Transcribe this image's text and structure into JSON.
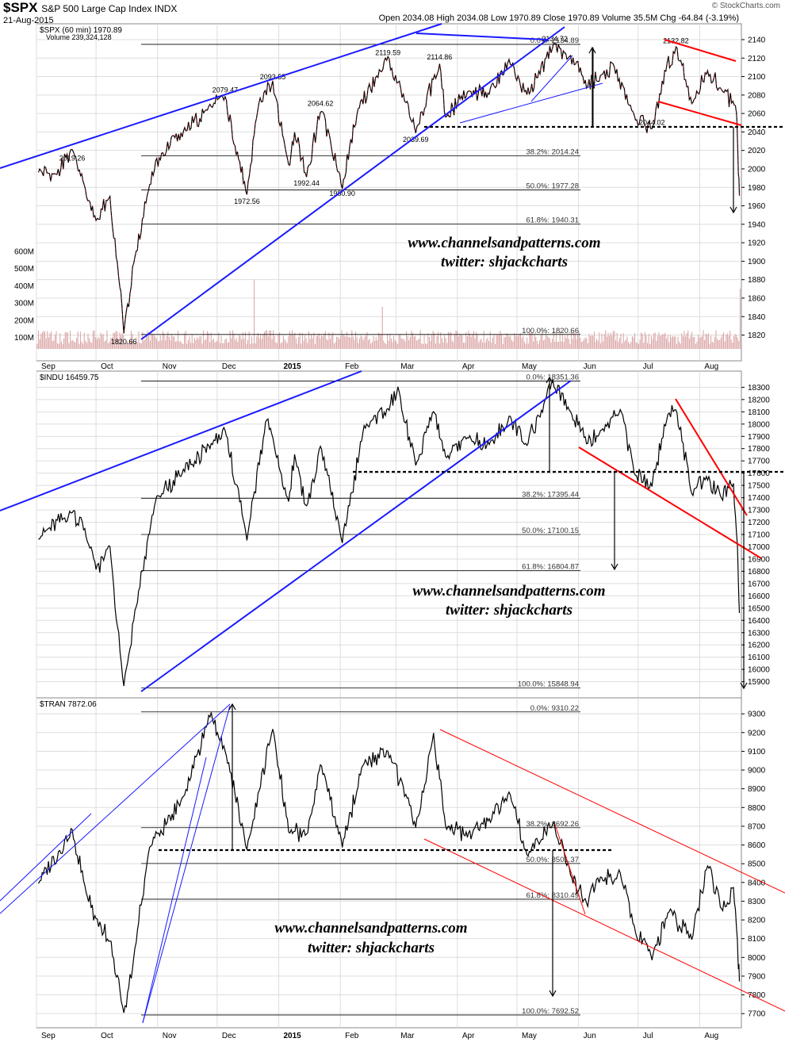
{
  "header": {
    "symbol": "$SPX",
    "name": "S&P 500 Large Cap Index INDX",
    "date": "21-Aug-2015",
    "ohlc": "Open 2034.08 High 2034.08 Low 1970.89 Close 1970.89 Volume 35.5M Chg -64.84 (-3.19%)",
    "brand": "© StockCharts.com"
  },
  "colors": {
    "trendline": "#1a1aff",
    "resistance": "#ff0000",
    "price_up": "#000000",
    "price_down": "#cc0000",
    "volume": "#d9a0a0",
    "grid": "#dddddd"
  },
  "watermark": {
    "line1": "www.channelsandpatterns.com",
    "line2": "twitter: shjackcharts"
  },
  "chart_data": [
    {
      "type": "line",
      "legend": "$SPX (60 min) 1970.89",
      "volume_label": "Volume 239,324,128",
      "y_ticks": [
        1820,
        1840,
        1860,
        1880,
        1900,
        1920,
        1940,
        1960,
        1980,
        2000,
        2020,
        2040,
        2060,
        2080,
        2100,
        2120,
        2140
      ],
      "ylim": [
        1805,
        2152
      ],
      "volume_ticks": [
        "100M",
        "200M",
        "300M",
        "400M",
        "500M",
        "600M"
      ],
      "fib_levels": [
        {
          "label": "0.0%: 2134.89",
          "value": 2134.89
        },
        {
          "label": "38.2%: 2014.24",
          "value": 2014.24
        },
        {
          "label": "50.0%: 1977.28",
          "value": 1977.28
        },
        {
          "label": "61.8%: 1940.31",
          "value": 1940.31
        },
        {
          "label": "100.0%: 1820.66",
          "value": 1820.66
        }
      ],
      "annotations": [
        {
          "text": "2019.26",
          "date": "2014-09-19",
          "value": 2019.26
        },
        {
          "text": "1820.66",
          "date": "2014-10-15",
          "value": 1820.66
        },
        {
          "text": "2079.47",
          "date": "2014-12-05",
          "value": 2079.47
        },
        {
          "text": "1972.56",
          "date": "2014-12-16",
          "value": 1972.56
        },
        {
          "text": "2093.55",
          "date": "2014-12-29",
          "value": 2093.55
        },
        {
          "text": "1992.44",
          "date": "2015-01-15",
          "value": 1992.44
        },
        {
          "text": "2064.62",
          "date": "2015-01-22",
          "value": 2064.62
        },
        {
          "text": "1980.90",
          "date": "2015-02-02",
          "value": 1980.9
        },
        {
          "text": "2119.59",
          "date": "2015-02-25",
          "value": 2119.59
        },
        {
          "text": "2039.69",
          "date": "2015-03-11",
          "value": 2039.69
        },
        {
          "text": "2114.86",
          "date": "2015-03-23",
          "value": 2114.86
        },
        {
          "text": "2134.72",
          "date": "2015-05-20",
          "value": 2134.72
        },
        {
          "text": "2044.02",
          "date": "2015-07-08",
          "value": 2044.02
        },
        {
          "text": "2132.82",
          "date": "2015-07-20",
          "value": 2132.82
        }
      ],
      "series": [
        {
          "values": [
            [
              "2014-09-02",
              1998
            ],
            [
              "2014-09-10",
              1993
            ],
            [
              "2014-09-19",
              2019
            ],
            [
              "2014-09-25",
              1981
            ],
            [
              "2014-10-01",
              1945
            ],
            [
              "2014-10-08",
              1968
            ],
            [
              "2014-10-13",
              1874
            ],
            [
              "2014-10-15",
              1821
            ],
            [
              "2014-10-20",
              1900
            ],
            [
              "2014-10-28",
              1985
            ],
            [
              "2014-11-03",
              2015
            ],
            [
              "2014-11-14",
              2040
            ],
            [
              "2014-11-28",
              2068
            ],
            [
              "2014-12-05",
              2079
            ],
            [
              "2014-12-10",
              2025
            ],
            [
              "2014-12-16",
              1973
            ],
            [
              "2014-12-22",
              2070
            ],
            [
              "2014-12-29",
              2093
            ],
            [
              "2015-01-06",
              2003
            ],
            [
              "2015-01-09",
              2040
            ],
            [
              "2015-01-15",
              1992
            ],
            [
              "2015-01-22",
              2064
            ],
            [
              "2015-01-27",
              2030
            ],
            [
              "2015-02-02",
              1981
            ],
            [
              "2015-02-10",
              2066
            ],
            [
              "2015-02-20",
              2100
            ],
            [
              "2015-02-25",
              2119
            ],
            [
              "2015-03-06",
              2072
            ],
            [
              "2015-03-11",
              2040
            ],
            [
              "2015-03-23",
              2114
            ],
            [
              "2015-03-26",
              2056
            ],
            [
              "2015-04-06",
              2083
            ],
            [
              "2015-04-17",
              2082
            ],
            [
              "2015-04-27",
              2117
            ],
            [
              "2015-05-06",
              2081
            ],
            [
              "2015-05-12",
              2105
            ],
            [
              "2015-05-20",
              2134
            ],
            [
              "2015-05-28",
              2120
            ],
            [
              "2015-06-05",
              2090
            ],
            [
              "2015-06-12",
              2100
            ],
            [
              "2015-06-19",
              2110
            ],
            [
              "2015-06-29",
              2057
            ],
            [
              "2015-07-08",
              2044
            ],
            [
              "2015-07-15",
              2108
            ],
            [
              "2015-07-20",
              2132
            ],
            [
              "2015-07-28",
              2070
            ],
            [
              "2015-08-05",
              2105
            ],
            [
              "2015-08-12",
              2085
            ],
            [
              "2015-08-19",
              2070
            ],
            [
              "2015-08-20",
              2035
            ],
            [
              "2015-08-21",
              1971
            ]
          ]
        }
      ]
    },
    {
      "type": "line",
      "legend": "$INDU 16459.75",
      "y_ticks": [
        15900,
        16000,
        16100,
        16200,
        16300,
        16400,
        16500,
        16600,
        16700,
        16800,
        16900,
        17000,
        17100,
        17200,
        17300,
        17400,
        17500,
        17600,
        17700,
        17800,
        17900,
        18000,
        18100,
        18200,
        18300
      ],
      "ylim": [
        15820,
        18380
      ],
      "fib_levels": [
        {
          "label": "0.0%: 18351.36",
          "value": 18351.36
        },
        {
          "label": "38.2%: 17395.44",
          "value": 17395.44
        },
        {
          "label": "50.0%: 17100.15",
          "value": 17100.15
        },
        {
          "label": "61.8%: 16804.87",
          "value": 16804.87
        },
        {
          "label": "100.0%: 15848.94",
          "value": 15848.94
        }
      ],
      "series": [
        {
          "values": [
            [
              "2014-09-02",
              17080
            ],
            [
              "2014-09-19",
              17279
            ],
            [
              "2014-09-26",
              17100
            ],
            [
              "2014-10-01",
              16800
            ],
            [
              "2014-10-08",
              16990
            ],
            [
              "2014-10-15",
              15855
            ],
            [
              "2014-10-20",
              16400
            ],
            [
              "2014-10-31",
              17390
            ],
            [
              "2014-11-14",
              17630
            ],
            [
              "2014-11-28",
              17830
            ],
            [
              "2014-12-05",
              17960
            ],
            [
              "2014-12-16",
              17070
            ],
            [
              "2014-12-26",
              18050
            ],
            [
              "2015-01-06",
              17370
            ],
            [
              "2015-01-09",
              17740
            ],
            [
              "2015-01-15",
              17320
            ],
            [
              "2015-01-22",
              17810
            ],
            [
              "2015-02-02",
              17050
            ],
            [
              "2015-02-13",
              17970
            ],
            [
              "2015-02-25",
              18110
            ],
            [
              "2015-03-02",
              18290
            ],
            [
              "2015-03-11",
              17660
            ],
            [
              "2015-03-20",
              18120
            ],
            [
              "2015-03-26",
              17720
            ],
            [
              "2015-04-06",
              17880
            ],
            [
              "2015-04-17",
              17830
            ],
            [
              "2015-04-27",
              18050
            ],
            [
              "2015-05-06",
              17840
            ],
            [
              "2015-05-12",
              18060
            ],
            [
              "2015-05-19",
              18351
            ],
            [
              "2015-05-28",
              18120
            ],
            [
              "2015-06-05",
              17850
            ],
            [
              "2015-06-12",
              17950
            ],
            [
              "2015-06-22",
              18120
            ],
            [
              "2015-06-29",
              17600
            ],
            [
              "2015-07-08",
              17510
            ],
            [
              "2015-07-16",
              18080
            ],
            [
              "2015-07-20",
              18120
            ],
            [
              "2015-07-28",
              17440
            ],
            [
              "2015-08-05",
              17550
            ],
            [
              "2015-08-12",
              17400
            ],
            [
              "2015-08-18",
              17520
            ],
            [
              "2015-08-20",
              17000
            ],
            [
              "2015-08-21",
              16460
            ]
          ]
        }
      ]
    },
    {
      "type": "line",
      "legend": "$TRAN 7872.06",
      "y_ticks": [
        7700,
        7800,
        7900,
        8000,
        8100,
        8200,
        8300,
        8400,
        8500,
        8600,
        8700,
        8800,
        8900,
        9000,
        9100,
        9200,
        9300
      ],
      "ylim": [
        7650,
        9360
      ],
      "fib_levels": [
        {
          "label": "0.0%: 9310.22",
          "value": 9310.22
        },
        {
          "label": "38.2%: 8692.26",
          "value": 8692.26
        },
        {
          "label": "50.0%: 8501.37",
          "value": 8501.37
        },
        {
          "label": "61.8%: 8310.49",
          "value": 8310.49
        },
        {
          "label": "100.0%: 7692.52",
          "value": 7692.52
        }
      ],
      "series": [
        {
          "values": [
            [
              "2014-09-02",
              8400
            ],
            [
              "2014-09-19",
              8680
            ],
            [
              "2014-09-26",
              8350
            ],
            [
              "2014-10-01",
              8200
            ],
            [
              "2014-10-08",
              8100
            ],
            [
              "2014-10-15",
              7693
            ],
            [
              "2014-10-20",
              8000
            ],
            [
              "2014-10-28",
              8600
            ],
            [
              "2014-11-14",
              8850
            ],
            [
              "2014-11-28",
              9310
            ],
            [
              "2014-12-05",
              9100
            ],
            [
              "2014-12-16",
              8580
            ],
            [
              "2014-12-29",
              9230
            ],
            [
              "2015-01-06",
              8680
            ],
            [
              "2015-01-15",
              8650
            ],
            [
              "2015-01-22",
              9040
            ],
            [
              "2015-02-02",
              8600
            ],
            [
              "2015-02-13",
              9040
            ],
            [
              "2015-02-25",
              9100
            ],
            [
              "2015-03-06",
              8860
            ],
            [
              "2015-03-11",
              8700
            ],
            [
              "2015-03-20",
              9190
            ],
            [
              "2015-03-26",
              8700
            ],
            [
              "2015-04-06",
              8650
            ],
            [
              "2015-04-17",
              8730
            ],
            [
              "2015-04-27",
              8880
            ],
            [
              "2015-05-06",
              8550
            ],
            [
              "2015-05-19",
              8720
            ],
            [
              "2015-05-28",
              8450
            ],
            [
              "2015-06-05",
              8280
            ],
            [
              "2015-06-12",
              8420
            ],
            [
              "2015-06-22",
              8450
            ],
            [
              "2015-06-29",
              8160
            ],
            [
              "2015-07-08",
              7990
            ],
            [
              "2015-07-16",
              8250
            ],
            [
              "2015-07-28",
              8100
            ],
            [
              "2015-08-05",
              8500
            ],
            [
              "2015-08-12",
              8250
            ],
            [
              "2015-08-18",
              8370
            ],
            [
              "2015-08-20",
              8100
            ],
            [
              "2015-08-21",
              7872
            ]
          ]
        }
      ]
    }
  ],
  "x_labels": [
    {
      "label": "Sep",
      "date": "2014-09-01"
    },
    {
      "label": "Oct",
      "date": "2014-10-01"
    },
    {
      "label": "Nov",
      "date": "2014-11-01"
    },
    {
      "label": "Dec",
      "date": "2014-12-01"
    },
    {
      "label": "2015",
      "date": "2015-01-01"
    },
    {
      "label": "Feb",
      "date": "2015-02-01"
    },
    {
      "label": "Mar",
      "date": "2015-03-01"
    },
    {
      "label": "Apr",
      "date": "2015-04-01"
    },
    {
      "label": "May",
      "date": "2015-05-01"
    },
    {
      "label": "Jun",
      "date": "2015-06-01"
    },
    {
      "label": "Jul",
      "date": "2015-07-01"
    },
    {
      "label": "Aug",
      "date": "2015-08-01"
    }
  ]
}
